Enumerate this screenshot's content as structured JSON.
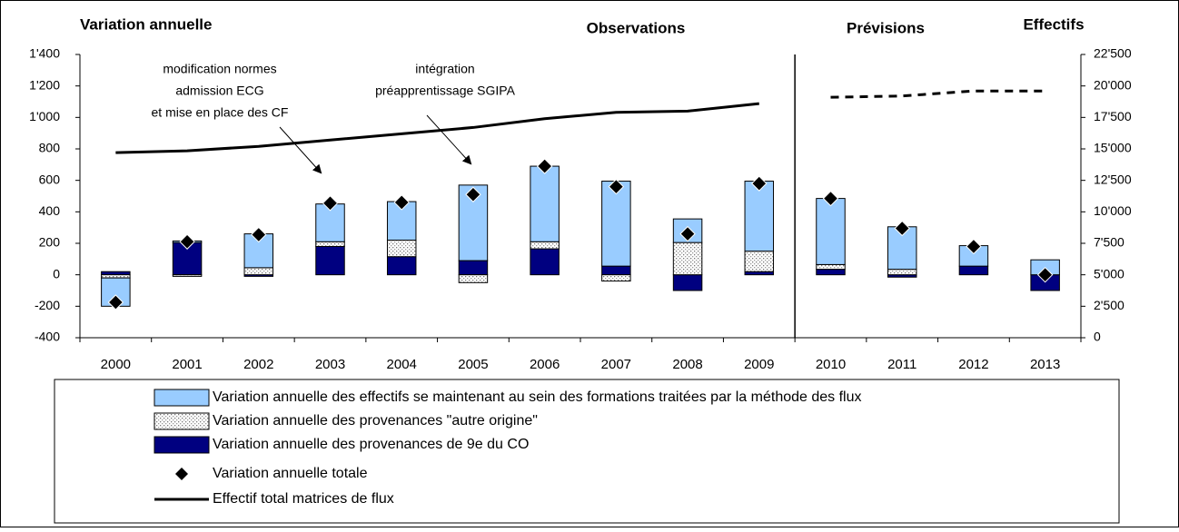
{
  "chart_data": {
    "type": "bar",
    "stacked": true,
    "header": "Variation annuelle",
    "y2_header": "Effectifs",
    "sections": [
      "Observations",
      "Prévisions"
    ],
    "forecast_from": "2010",
    "categories": [
      "2000",
      "2001",
      "2002",
      "2003",
      "2004",
      "2005",
      "2006",
      "2007",
      "2008",
      "2009",
      "2010",
      "2011",
      "2012",
      "2013"
    ],
    "series": [
      {
        "name": "Variation annuelle des effectifs se maintenant au sein des formations traitées par la méthode des flux",
        "color": "#99ccff",
        "values": [
          -180,
          10,
          215,
          240,
          245,
          480,
          480,
          540,
          150,
          445,
          420,
          270,
          130,
          95
        ]
      },
      {
        "name": "Variation annuelle des provenances \"autre origine\"",
        "color": "#d9d9d9",
        "pattern": "dots",
        "values": [
          -20,
          -10,
          45,
          30,
          105,
          -50,
          45,
          -40,
          205,
          130,
          30,
          35,
          0,
          0
        ]
      },
      {
        "name": "Variation annuelle des provenances de 9e du CO",
        "color": "#000080",
        "values": [
          20,
          205,
          -10,
          180,
          115,
          90,
          165,
          55,
          -100,
          20,
          35,
          -15,
          55,
          -100
        ]
      },
      {
        "name": "Variation annuelle totale",
        "type": "scatter",
        "marker": "diamond",
        "color": "#000000",
        "values": [
          -175,
          210,
          255,
          455,
          460,
          510,
          690,
          560,
          260,
          580,
          485,
          295,
          180,
          0
        ]
      },
      {
        "name": "Effectif total matrices de flux",
        "type": "line",
        "axis": "y2",
        "color": "#000000",
        "values": [
          14700,
          14850,
          15200,
          15700,
          16200,
          16700,
          17400,
          17900,
          18000,
          18600,
          19100,
          19200,
          19600,
          19600
        ]
      }
    ],
    "ylim": [
      -400,
      1400
    ],
    "yticks": [
      -400,
      -200,
      0,
      200,
      400,
      600,
      800,
      {
        "value": 1000,
        "label": "1'000"
      },
      {
        "value": 1200,
        "label": "1'200"
      },
      {
        "value": 1400,
        "label": "1'400"
      }
    ],
    "y2lim": [
      0,
      22500
    ],
    "y2ticks": [
      0,
      {
        "value": 2500,
        "label": "2'500"
      },
      {
        "value": 5000,
        "label": "5'000"
      },
      {
        "value": 7500,
        "label": "7'500"
      },
      {
        "value": 10000,
        "label": "10'000"
      },
      {
        "value": 12500,
        "label": "12'500"
      },
      {
        "value": 15000,
        "label": "15'000"
      },
      {
        "value": 17500,
        "label": "17'500"
      },
      {
        "value": 20000,
        "label": "20'000"
      },
      {
        "value": 22500,
        "label": "22'500"
      }
    ],
    "grid": false,
    "annotations": [
      {
        "text": [
          "modification normes",
          "admission ECG",
          "et mise en place des CF"
        ]
      },
      {
        "text": [
          "intégration",
          "préapprentissage SGIPA"
        ]
      }
    ]
  }
}
